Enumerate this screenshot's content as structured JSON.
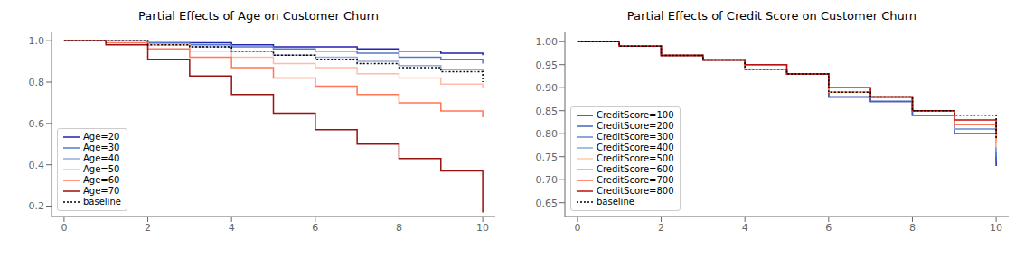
{
  "chart_data": [
    {
      "type": "step",
      "title": "Partial Effects of Age on Customer Churn",
      "x": [
        0,
        1,
        2,
        3,
        4,
        5,
        6,
        7,
        8,
        9,
        10
      ],
      "xlim": [
        -0.3,
        10.3
      ],
      "xticks": [
        0,
        2,
        4,
        6,
        8,
        10
      ],
      "ylim": [
        0.15,
        1.04
      ],
      "yticks": [
        0.2,
        0.4,
        0.6,
        0.8,
        {
          "value": 1.0,
          "label": "1.0"
        }
      ],
      "grid": false,
      "legend": "lower left",
      "series": [
        {
          "name": "Age=20",
          "color": "#2222aa",
          "line_style": "solid",
          "values": [
            1.0,
            1.0,
            0.99,
            0.99,
            0.98,
            0.97,
            0.97,
            0.96,
            0.95,
            0.94,
            0.93
          ]
        },
        {
          "name": "Age=30",
          "color": "#5577cc",
          "line_style": "solid",
          "values": [
            1.0,
            1.0,
            0.99,
            0.98,
            0.97,
            0.96,
            0.95,
            0.94,
            0.92,
            0.91,
            0.89
          ]
        },
        {
          "name": "Age=40",
          "color": "#99aadd",
          "line_style": "solid",
          "values": [
            1.0,
            1.0,
            0.98,
            0.97,
            0.95,
            0.93,
            0.92,
            0.9,
            0.88,
            0.86,
            0.85
          ]
        },
        {
          "name": "Age=50",
          "color": "#ffbbaa",
          "line_style": "solid",
          "values": [
            1.0,
            1.0,
            0.98,
            0.95,
            0.92,
            0.89,
            0.87,
            0.84,
            0.82,
            0.79,
            0.77
          ]
        },
        {
          "name": "Age=60",
          "color": "#ff7755",
          "line_style": "solid",
          "values": [
            1.0,
            0.99,
            0.96,
            0.92,
            0.87,
            0.82,
            0.78,
            0.74,
            0.7,
            0.66,
            0.63
          ]
        },
        {
          "name": "Age=70",
          "color": "#991111",
          "line_style": "solid",
          "values": [
            1.0,
            0.98,
            0.91,
            0.83,
            0.74,
            0.65,
            0.57,
            0.5,
            0.43,
            0.37,
            0.17
          ]
        },
        {
          "name": "baseline",
          "color": "#000000",
          "line_style": "dotted",
          "values": [
            1.0,
            1.0,
            0.98,
            0.97,
            0.95,
            0.93,
            0.91,
            0.89,
            0.87,
            0.85,
            0.8
          ]
        }
      ]
    },
    {
      "type": "step",
      "title": "Partial Effects of Credit Score on Customer Churn",
      "x": [
        0,
        1,
        2,
        3,
        4,
        5,
        6,
        7,
        8,
        9,
        10
      ],
      "xlim": [
        -0.3,
        10.3
      ],
      "xticks": [
        0,
        2,
        4,
        6,
        8,
        10
      ],
      "ylim": [
        0.62,
        1.02
      ],
      "yticks": [
        0.65,
        {
          "value": 0.7,
          "label": "0.70"
        },
        0.75,
        {
          "value": 0.8,
          "label": "0.80"
        },
        0.85,
        {
          "value": 0.9,
          "label": "0.90"
        },
        0.95,
        {
          "value": 1.0,
          "label": "1.00"
        }
      ],
      "grid": false,
      "legend": "lower left",
      "series": [
        {
          "name": "CreditScore=100",
          "color": "#2222aa",
          "line_style": "solid",
          "values": [
            1.0,
            0.99,
            0.97,
            0.96,
            0.94,
            0.93,
            0.88,
            0.87,
            0.84,
            0.8,
            0.73
          ]
        },
        {
          "name": "CreditScore=200",
          "color": "#4466bb",
          "line_style": "solid",
          "values": [
            1.0,
            0.99,
            0.97,
            0.96,
            0.94,
            0.93,
            0.88,
            0.87,
            0.84,
            0.8,
            0.74
          ]
        },
        {
          "name": "CreditScore=300",
          "color": "#6688cc",
          "line_style": "solid",
          "values": [
            1.0,
            0.99,
            0.97,
            0.96,
            0.94,
            0.93,
            0.89,
            0.88,
            0.85,
            0.81,
            0.75
          ]
        },
        {
          "name": "CreditScore=400",
          "color": "#88aadd",
          "line_style": "solid",
          "values": [
            1.0,
            0.99,
            0.97,
            0.96,
            0.94,
            0.93,
            0.89,
            0.88,
            0.85,
            0.81,
            0.76
          ]
        },
        {
          "name": "CreditScore=500",
          "color": "#ffccaa",
          "line_style": "solid",
          "values": [
            1.0,
            0.99,
            0.97,
            0.96,
            0.94,
            0.93,
            0.89,
            0.88,
            0.85,
            0.82,
            0.77
          ]
        },
        {
          "name": "CreditScore=600",
          "color": "#ff9966",
          "line_style": "solid",
          "values": [
            1.0,
            0.99,
            0.97,
            0.96,
            0.94,
            0.93,
            0.89,
            0.88,
            0.85,
            0.82,
            0.78
          ]
        },
        {
          "name": "CreditScore=700",
          "color": "#ff6644",
          "line_style": "solid",
          "values": [
            1.0,
            0.99,
            0.97,
            0.96,
            0.95,
            0.93,
            0.9,
            0.88,
            0.85,
            0.82,
            0.79
          ]
        },
        {
          "name": "CreditScore=800",
          "color": "#bb1111",
          "line_style": "solid",
          "values": [
            1.0,
            0.99,
            0.97,
            0.96,
            0.95,
            0.93,
            0.9,
            0.88,
            0.85,
            0.83,
            0.8
          ]
        },
        {
          "name": "baseline",
          "color": "#000000",
          "line_style": "dotted",
          "values": [
            1.0,
            0.99,
            0.97,
            0.96,
            0.94,
            0.93,
            0.89,
            0.88,
            0.85,
            0.84,
            0.79
          ]
        }
      ]
    }
  ]
}
